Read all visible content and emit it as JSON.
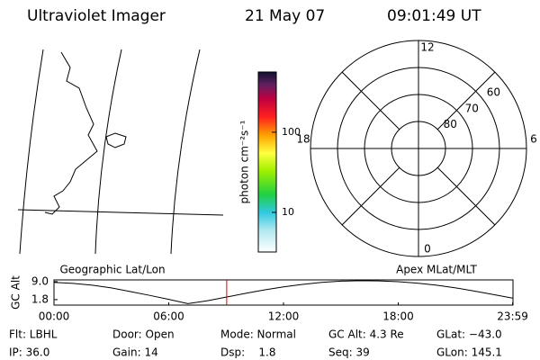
{
  "header": {
    "title": "Ultraviolet Imager",
    "date": "21 May 07",
    "time": "09:01:49 UT"
  },
  "colorbar": {
    "label": "photon cm⁻²s⁻¹",
    "log": true,
    "clim": [
      3.2,
      565
    ],
    "ticks": [
      100,
      10
    ]
  },
  "polar": {
    "lat_range": [
      90,
      50
    ],
    "rings": [
      80,
      70,
      60
    ],
    "mlt_labels": [
      12,
      18,
      6,
      0
    ]
  },
  "timeline": {
    "left_label": "Geographic Lat/Lon",
    "right_label": "Apex MLat/MLT",
    "ylabel": "GC Alt",
    "xlim": [
      0,
      24
    ],
    "ylim": [
      -0.4,
      9.7
    ],
    "xticks": [
      {
        "value": 0,
        "label": "00:00"
      },
      {
        "value": 6,
        "label": "06:00"
      },
      {
        "value": 12,
        "label": "12:00"
      },
      {
        "value": 18,
        "label": "18:00"
      },
      {
        "value": 23.98,
        "label": "23:59"
      }
    ],
    "yticks": [
      {
        "value": 9.0,
        "label": "9.0"
      },
      {
        "value": 1.8,
        "label": "1.8"
      }
    ],
    "x": [
      0,
      1,
      2,
      3,
      4,
      5,
      6,
      7,
      8,
      9,
      10,
      11,
      12,
      13,
      14,
      15,
      16,
      17,
      18,
      19,
      20,
      21,
      22,
      23,
      23.98
    ],
    "values": [
      8.7,
      8.3,
      7.6,
      6.5,
      5.0,
      3.5,
      1.9,
      0.2,
      1.3,
      2.8,
      4.3,
      5.7,
      6.9,
      7.9,
      8.7,
      9.2,
      9.4,
      9.3,
      9.0,
      8.4,
      7.6,
      6.5,
      5.2,
      3.8,
      2.4
    ],
    "marker_hour": 9.03,
    "marker_color": "#e00000"
  },
  "footer": {
    "rows": [
      [
        "Flt: LBHL",
        "Door: Open",
        "Mode: Normal",
        "GC Alt: 4.3 Re",
        "GLat: −43.0"
      ],
      [
        "IP: 36.0",
        "Gain: 14",
        "Dsp:    1.8",
        "Seq: 39",
        "GLon: 145.1"
      ]
    ]
  }
}
